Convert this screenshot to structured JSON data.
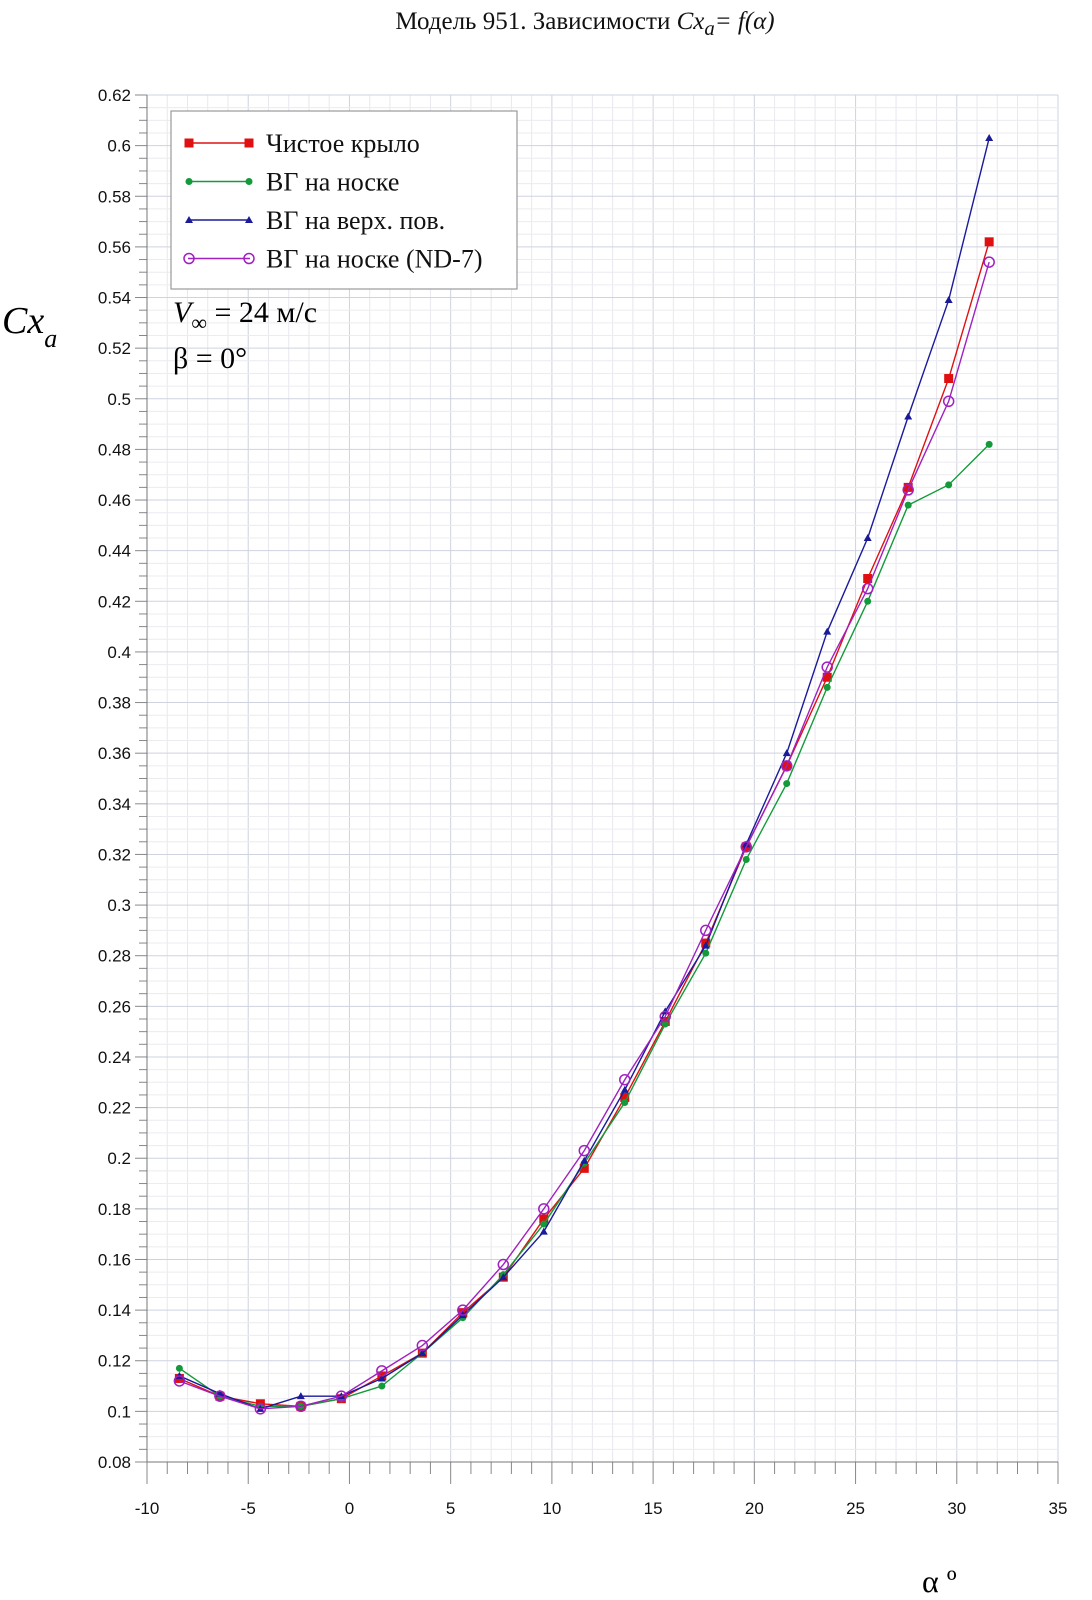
{
  "chart_data": {
    "type": "line",
    "title": "Модель 951. Зависимости Cxa= f(α)",
    "title_parts": {
      "prefix": "Модель 951. Зависимости ",
      "var": "Cx",
      "sub": "a",
      "suffix": "= f(α)"
    },
    "xlabel": "α º",
    "ylabel": {
      "main": "Cx",
      "sub": "a"
    },
    "xlim": [
      -10,
      35
    ],
    "ylim": [
      0.08,
      0.62
    ],
    "xticks": [
      -10,
      -5,
      0,
      5,
      10,
      15,
      20,
      25,
      30,
      35
    ],
    "yticks": [
      0.08,
      0.1,
      0.12,
      0.14,
      0.16,
      0.18,
      0.2,
      0.22,
      0.24,
      0.26,
      0.28,
      0.3,
      0.32,
      0.34,
      0.36,
      0.38,
      0.4,
      0.42,
      0.44,
      0.46,
      0.48,
      0.5,
      0.52,
      0.54,
      0.56,
      0.58,
      0.6,
      0.62
    ],
    "grid": true,
    "legend_position": "top-left",
    "annotations": [
      {
        "main": "V",
        "sub": "∞",
        "rest": " = 24 м/с"
      },
      {
        "main": "β = 0°"
      }
    ],
    "x": [
      -8.4,
      -6.4,
      -4.4,
      -2.4,
      -0.4,
      1.6,
      3.6,
      5.6,
      7.6,
      9.6,
      11.6,
      13.6,
      15.6,
      17.6,
      19.6,
      21.6,
      23.6,
      25.6,
      27.6,
      29.6,
      31.6
    ],
    "series": [
      {
        "name": "Чистое крыло",
        "color": "#e01010",
        "marker": "square",
        "values": [
          0.113,
          0.106,
          0.103,
          0.102,
          0.105,
          0.114,
          0.123,
          0.139,
          0.153,
          0.176,
          0.196,
          0.224,
          0.254,
          0.285,
          0.323,
          0.355,
          0.39,
          0.429,
          0.465,
          0.508,
          0.562
        ]
      },
      {
        "name": "ВГ на носке",
        "color": "#139a3a",
        "marker": "circle",
        "values": [
          0.117,
          0.106,
          0.102,
          0.102,
          0.105,
          0.11,
          0.123,
          0.137,
          0.154,
          0.174,
          0.198,
          0.222,
          0.253,
          0.281,
          0.318,
          0.348,
          0.386,
          0.42,
          0.458,
          0.466,
          0.482
        ]
      },
      {
        "name": "ВГ на верх. пов.",
        "color": "#1a1a9a",
        "marker": "triangle",
        "values": [
          0.114,
          0.107,
          0.101,
          0.106,
          0.106,
          0.113,
          0.123,
          0.138,
          0.153,
          0.171,
          0.199,
          0.227,
          0.258,
          0.284,
          0.324,
          0.36,
          0.408,
          0.445,
          0.493,
          0.539,
          0.603
        ]
      },
      {
        "name": "ВГ на носке (ND-7)",
        "color": "#a020c0",
        "marker": "open-circle",
        "values": [
          0.112,
          0.106,
          0.101,
          0.102,
          0.106,
          0.116,
          0.126,
          0.14,
          0.158,
          0.18,
          0.203,
          0.231,
          0.256,
          0.29,
          0.323,
          0.355,
          0.394,
          0.425,
          0.464,
          0.499,
          0.554
        ]
      }
    ]
  }
}
